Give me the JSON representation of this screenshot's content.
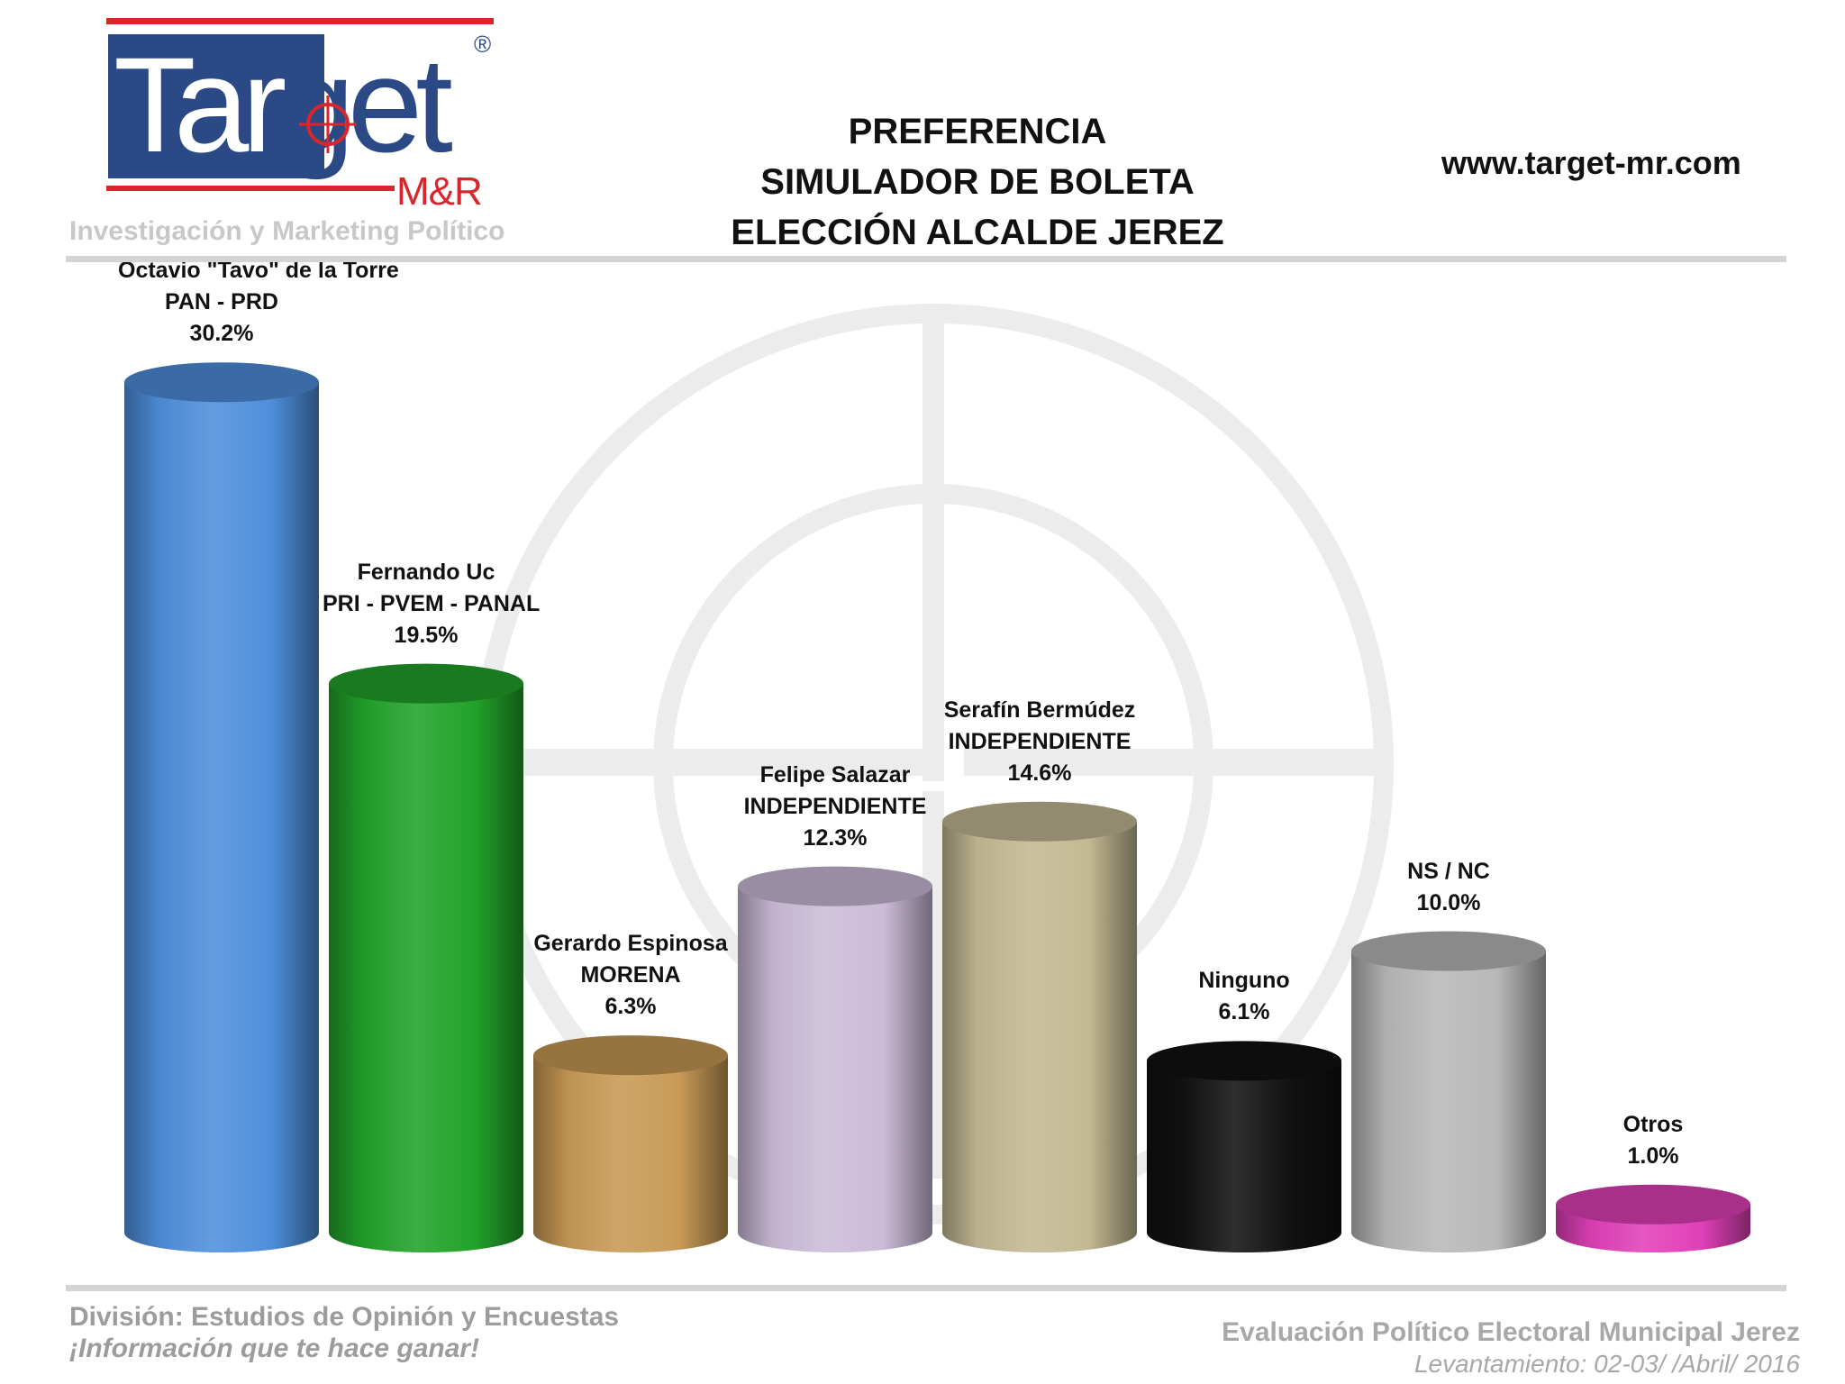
{
  "logo": {
    "word_light": "Tar",
    "word_dark": "get",
    "mr": "M&R",
    "registered": "®"
  },
  "tagline": "Investigación y Marketing Político",
  "title_lines": [
    "PREFERENCIA",
    "SIMULADOR DE BOLETA",
    "ELECCIÓN ALCALDE JEREZ"
  ],
  "website": "www.target-mr.com",
  "footer": {
    "division": "División: Estudios de Opinión y Encuestas",
    "slogan": "¡Información que te hace ganar!",
    "evaluacion": "Evaluación Político Electoral Municipal Jerez",
    "levantamiento": "Levantamiento: 02-03/ /Abril/ 2016"
  },
  "colors": {
    "brand_blue": "#2b4a85",
    "brand_red": "#d9262c",
    "rule_gray": "#d4d4d4"
  },
  "chart_data": {
    "type": "bar",
    "style": "3d-cylinder",
    "title": "PREFERENCIA SIMULADOR DE BOLETA ELECCIÓN ALCALDE JEREZ",
    "grid": false,
    "ylim": [
      0,
      32
    ],
    "bars": [
      {
        "name": "Octavio \"Tavo\" de la Torre",
        "party": "PAN - PRD",
        "value": 30.2,
        "label": "30.2%",
        "color": "#4f8fdc"
      },
      {
        "name": "Fernando Uc",
        "party": "PRI - PVEM - PANAL",
        "value": 19.5,
        "label": "19.5%",
        "color": "#22a22a"
      },
      {
        "name": "Gerardo Espinosa",
        "party": "MORENA",
        "value": 6.3,
        "label": "6.3%",
        "color": "#c89a55"
      },
      {
        "name": "Felipe Salazar",
        "party": "INDEPENDIENTE",
        "value": 12.3,
        "label": "12.3%",
        "color": "#cbbcd8"
      },
      {
        "name": "Serafín Bermúdez",
        "party": "INDEPENDIENTE",
        "value": 14.6,
        "label": "14.6%",
        "color": "#c4b994"
      },
      {
        "name": "Ninguno",
        "party": "",
        "value": 6.1,
        "label": "6.1%",
        "color": "#111111"
      },
      {
        "name": "NS / NC",
        "party": "",
        "value": 10.0,
        "label": "10.0%",
        "color": "#b8b8b8"
      },
      {
        "name": "Otros",
        "party": "",
        "value": 1.0,
        "label": "1.0%",
        "color": "#e040b8"
      }
    ]
  }
}
